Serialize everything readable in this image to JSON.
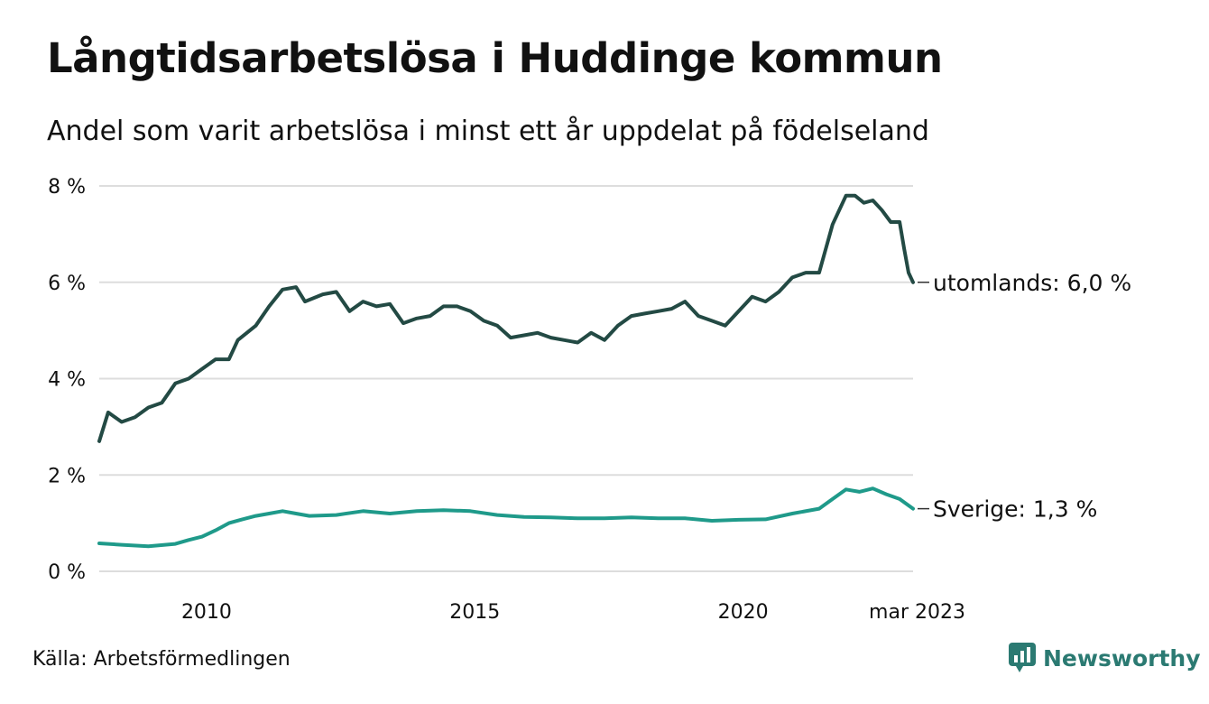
{
  "title": "Långtidsarbetslösa i Huddinge kommun",
  "subtitle": "Andel som varit arbetslösa i minst ett år uppdelat på födelseland",
  "source": "Källa: Arbetsförmedlingen",
  "brand": "Newsworthy",
  "colors": {
    "utomlands": "#234a44",
    "sverige": "#1f9a8a",
    "grid": "#dddddd",
    "brand": "#2b7a72"
  },
  "chart_data": {
    "type": "line",
    "x_ticks": [
      "2010",
      "2015",
      "2020",
      "mar 2023"
    ],
    "y_ticks": [
      "0 %",
      "2 %",
      "4 %",
      "6 %",
      "8 %"
    ],
    "ylim": [
      0,
      8
    ],
    "xlim": [
      "2008-01",
      "2023-03"
    ],
    "grid": true,
    "series": [
      {
        "name": "utomlands",
        "end_label": "utomlands: 6,0 %",
        "points": [
          [
            "2008-01",
            2.7
          ],
          [
            "2008-03",
            3.3
          ],
          [
            "2008-06",
            3.1
          ],
          [
            "2008-09",
            3.2
          ],
          [
            "2008-12",
            3.4
          ],
          [
            "2009-03",
            3.5
          ],
          [
            "2009-06",
            3.9
          ],
          [
            "2009-09",
            4.0
          ],
          [
            "2009-12",
            4.2
          ],
          [
            "2010-03",
            4.4
          ],
          [
            "2010-06",
            4.4
          ],
          [
            "2010-08",
            4.8
          ],
          [
            "2010-12",
            5.1
          ],
          [
            "2011-03",
            5.5
          ],
          [
            "2011-06",
            5.85
          ],
          [
            "2011-09",
            5.9
          ],
          [
            "2011-11",
            5.6
          ],
          [
            "2012-03",
            5.75
          ],
          [
            "2012-06",
            5.8
          ],
          [
            "2012-09",
            5.4
          ],
          [
            "2012-12",
            5.6
          ],
          [
            "2013-03",
            5.5
          ],
          [
            "2013-06",
            5.55
          ],
          [
            "2013-09",
            5.15
          ],
          [
            "2013-12",
            5.25
          ],
          [
            "2014-03",
            5.3
          ],
          [
            "2014-06",
            5.5
          ],
          [
            "2014-09",
            5.5
          ],
          [
            "2014-12",
            5.4
          ],
          [
            "2015-03",
            5.2
          ],
          [
            "2015-06",
            5.1
          ],
          [
            "2015-09",
            4.85
          ],
          [
            "2015-12",
            4.9
          ],
          [
            "2016-03",
            4.95
          ],
          [
            "2016-06",
            4.85
          ],
          [
            "2016-09",
            4.8
          ],
          [
            "2016-12",
            4.75
          ],
          [
            "2017-03",
            4.95
          ],
          [
            "2017-06",
            4.8
          ],
          [
            "2017-09",
            5.1
          ],
          [
            "2017-12",
            5.3
          ],
          [
            "2018-03",
            5.35
          ],
          [
            "2018-06",
            5.4
          ],
          [
            "2018-09",
            5.45
          ],
          [
            "2018-12",
            5.6
          ],
          [
            "2019-03",
            5.3
          ],
          [
            "2019-06",
            5.2
          ],
          [
            "2019-09",
            5.1
          ],
          [
            "2019-12",
            5.4
          ],
          [
            "2020-03",
            5.7
          ],
          [
            "2020-06",
            5.6
          ],
          [
            "2020-09",
            5.8
          ],
          [
            "2020-12",
            6.1
          ],
          [
            "2021-03",
            6.2
          ],
          [
            "2021-06",
            6.2
          ],
          [
            "2021-09",
            7.2
          ],
          [
            "2021-12",
            7.8
          ],
          [
            "2022-02",
            7.8
          ],
          [
            "2022-04",
            7.65
          ],
          [
            "2022-06",
            7.7
          ],
          [
            "2022-08",
            7.5
          ],
          [
            "2022-10",
            7.25
          ],
          [
            "2022-12",
            7.25
          ],
          [
            "2023-01",
            6.7
          ],
          [
            "2023-02",
            6.2
          ],
          [
            "2023-03",
            6.0
          ]
        ]
      },
      {
        "name": "Sverige",
        "end_label": "Sverige: 1,3 %",
        "points": [
          [
            "2008-01",
            0.58
          ],
          [
            "2008-06",
            0.55
          ],
          [
            "2008-12",
            0.52
          ],
          [
            "2009-06",
            0.57
          ],
          [
            "2009-09",
            0.65
          ],
          [
            "2009-12",
            0.72
          ],
          [
            "2010-03",
            0.85
          ],
          [
            "2010-06",
            1.0
          ],
          [
            "2010-09",
            1.08
          ],
          [
            "2010-12",
            1.15
          ],
          [
            "2011-03",
            1.2
          ],
          [
            "2011-06",
            1.25
          ],
          [
            "2011-09",
            1.2
          ],
          [
            "2011-12",
            1.15
          ],
          [
            "2012-06",
            1.17
          ],
          [
            "2012-12",
            1.25
          ],
          [
            "2013-06",
            1.2
          ],
          [
            "2013-12",
            1.25
          ],
          [
            "2014-06",
            1.27
          ],
          [
            "2014-12",
            1.25
          ],
          [
            "2015-06",
            1.17
          ],
          [
            "2015-12",
            1.13
          ],
          [
            "2016-06",
            1.12
          ],
          [
            "2016-12",
            1.1
          ],
          [
            "2017-06",
            1.1
          ],
          [
            "2017-12",
            1.12
          ],
          [
            "2018-06",
            1.1
          ],
          [
            "2018-12",
            1.1
          ],
          [
            "2019-06",
            1.05
          ],
          [
            "2019-12",
            1.07
          ],
          [
            "2020-06",
            1.08
          ],
          [
            "2020-12",
            1.2
          ],
          [
            "2021-06",
            1.3
          ],
          [
            "2021-09",
            1.5
          ],
          [
            "2021-12",
            1.7
          ],
          [
            "2022-03",
            1.65
          ],
          [
            "2022-06",
            1.72
          ],
          [
            "2022-09",
            1.6
          ],
          [
            "2022-12",
            1.5
          ],
          [
            "2023-03",
            1.3
          ]
        ]
      }
    ]
  }
}
